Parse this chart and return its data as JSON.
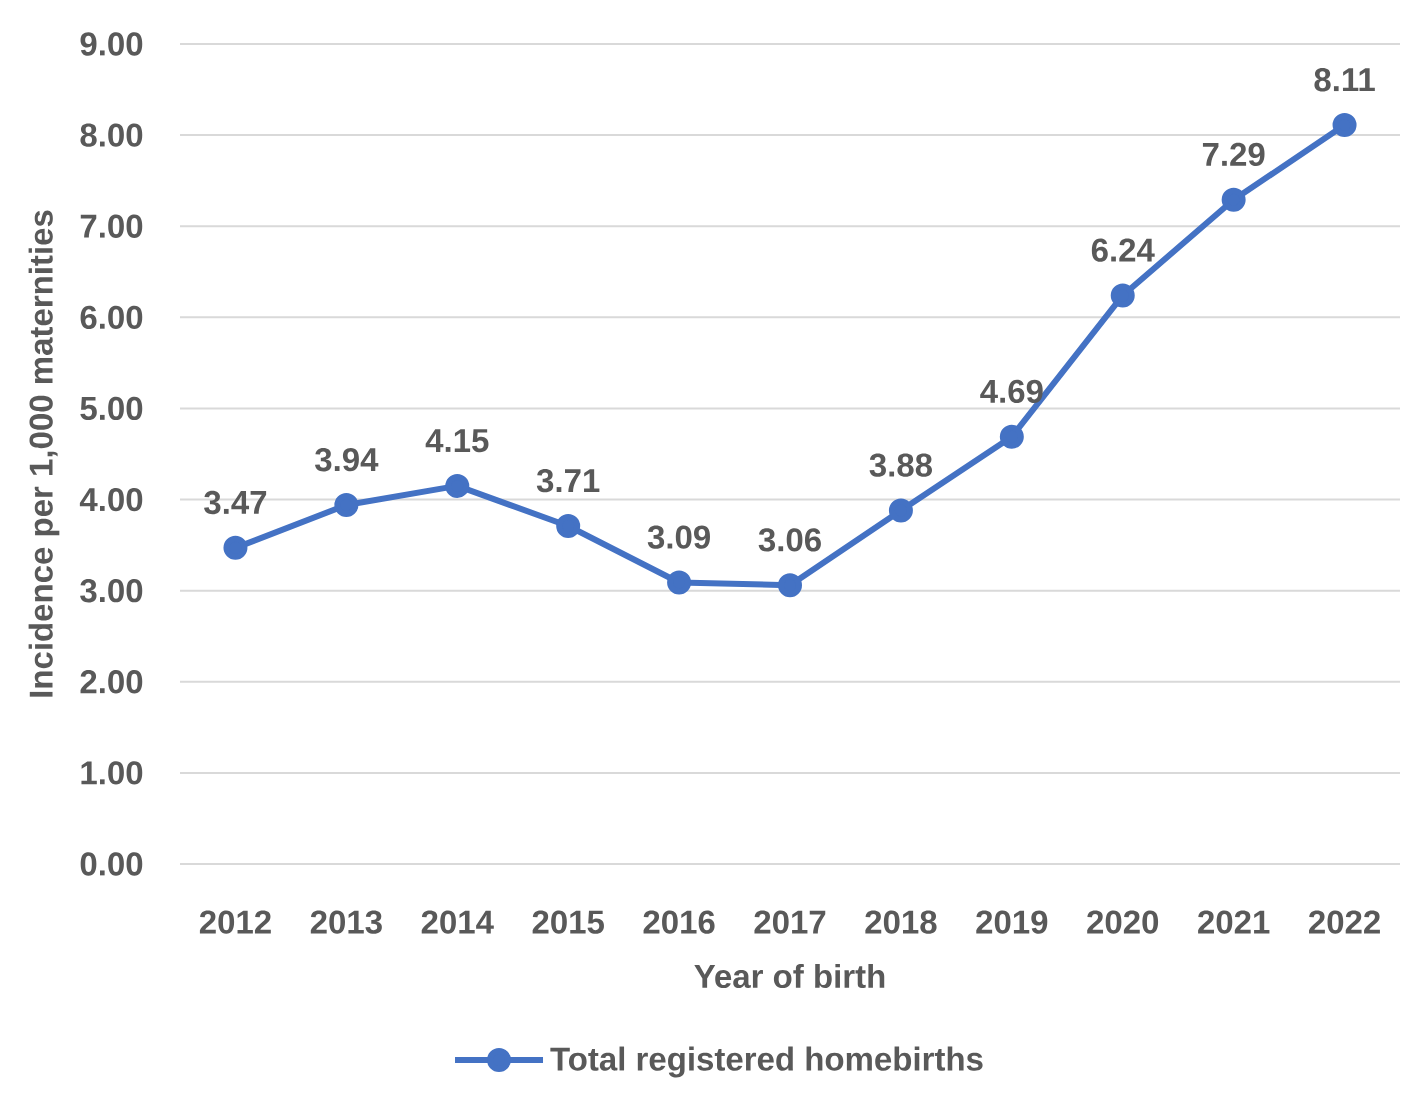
{
  "chart_data": {
    "type": "line",
    "xlabel": "Year of birth",
    "ylabel": "Incidence per 1,000 maternities",
    "categories": [
      "2012",
      "2013",
      "2014",
      "2015",
      "2016",
      "2017",
      "2018",
      "2019",
      "2020",
      "2021",
      "2022"
    ],
    "series": [
      {
        "name": "Total registered homebirths",
        "color": "#4472c4",
        "values": [
          3.47,
          3.94,
          4.15,
          3.71,
          3.09,
          3.06,
          3.88,
          4.69,
          6.24,
          7.29,
          8.11
        ]
      }
    ],
    "ylim": [
      0,
      9
    ],
    "yticks": [
      {
        "value": 0,
        "label": "0.00"
      },
      {
        "value": 1,
        "label": "1.00"
      },
      {
        "value": 2,
        "label": "2.00"
      },
      {
        "value": 3,
        "label": "3.00"
      },
      {
        "value": 4,
        "label": "4.00"
      },
      {
        "value": 5,
        "label": "5.00"
      },
      {
        "value": 6,
        "label": "6.00"
      },
      {
        "value": 7,
        "label": "7.00"
      },
      {
        "value": 8,
        "label": "8.00"
      },
      {
        "value": 9,
        "label": "9.00"
      }
    ],
    "grid": "y",
    "legend": "bottom",
    "marker": "circle",
    "line_style": "solid",
    "data_labels": true
  }
}
